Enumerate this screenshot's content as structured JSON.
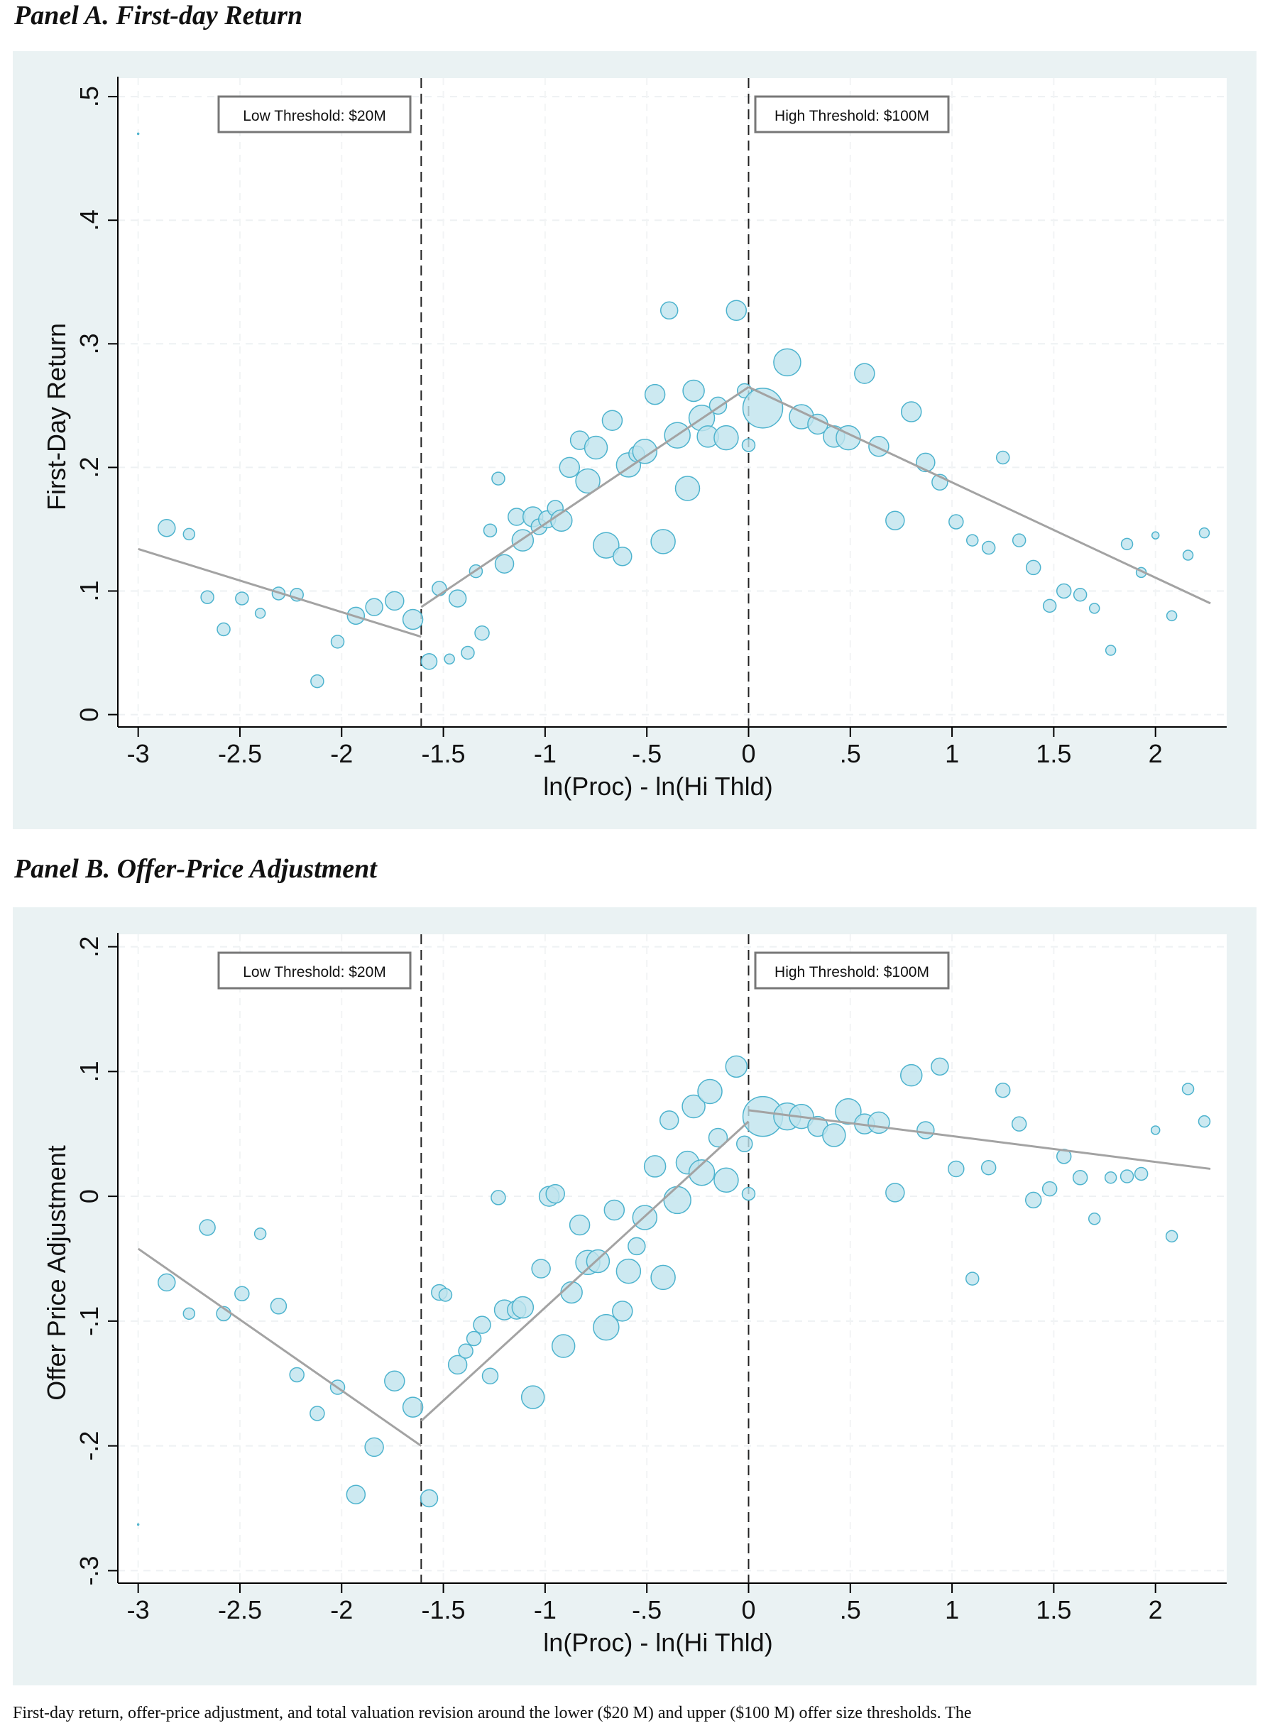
{
  "panels": [
    {
      "title": "Panel A. First-day Return"
    },
    {
      "title": "Panel B. Offer-Price Adjustment"
    }
  ],
  "caption": "First-day return, offer-price adjustment, and total valuation revision around the lower ($20 M) and upper ($100 M) offer size thresholds. The",
  "chart_data": [
    {
      "type": "scatter",
      "xlabel": "ln(Proc) - ln(Hi Thld)",
      "ylabel": "First-Day Return",
      "xlim": [
        -3.1,
        2.35
      ],
      "ylim": [
        -0.01,
        0.515
      ],
      "xticks": [
        -3,
        -2.5,
        -2,
        -1.5,
        -1,
        -0.5,
        0,
        0.5,
        1,
        1.5,
        2
      ],
      "xticklabels": [
        "-3",
        "-2.5",
        "-2",
        "-1.5",
        "-1",
        "-.5",
        "0",
        ".5",
        "1",
        "1.5",
        "2"
      ],
      "yticks": [
        0,
        0.1,
        0.2,
        0.3,
        0.4,
        0.5
      ],
      "yticklabels": [
        "0",
        ".1",
        ".2",
        ".3",
        ".4",
        ".5"
      ],
      "grid": true,
      "thresholds": [
        {
          "x": -1.609,
          "label": "Low Threshold: $20M"
        },
        {
          "x": 0,
          "label": "High Threshold: $100M"
        }
      ],
      "fit_lines": [
        {
          "x": [
            -3,
            -1.609
          ],
          "y": [
            0.134,
            0.063
          ]
        },
        {
          "x": [
            -1.609,
            0
          ],
          "y": [
            0.087,
            0.265
          ]
        },
        {
          "x": [
            0,
            2.27
          ],
          "y": [
            0.265,
            0.09
          ]
        }
      ],
      "points": [
        [
          -3.0,
          0.47,
          1
        ],
        [
          -2.86,
          0.151,
          12
        ],
        [
          -2.75,
          0.146,
          8
        ],
        [
          -2.66,
          0.095,
          9
        ],
        [
          -2.58,
          0.069,
          9
        ],
        [
          -2.49,
          0.094,
          9
        ],
        [
          -2.4,
          0.082,
          7
        ],
        [
          -2.31,
          0.098,
          9
        ],
        [
          -2.22,
          0.097,
          9
        ],
        [
          -2.12,
          0.027,
          9
        ],
        [
          -2.02,
          0.059,
          9
        ],
        [
          -1.93,
          0.08,
          12
        ],
        [
          -1.84,
          0.087,
          12
        ],
        [
          -1.74,
          0.092,
          13
        ],
        [
          -1.65,
          0.077,
          14
        ],
        [
          -1.57,
          0.043,
          11
        ],
        [
          -1.52,
          0.102,
          10
        ],
        [
          -1.47,
          0.045,
          7
        ],
        [
          -1.43,
          0.094,
          12
        ],
        [
          -1.38,
          0.05,
          9
        ],
        [
          -1.34,
          0.116,
          9
        ],
        [
          -1.31,
          0.066,
          10
        ],
        [
          -1.27,
          0.149,
          9
        ],
        [
          -1.23,
          0.191,
          9
        ],
        [
          -1.2,
          0.122,
          13
        ],
        [
          -1.14,
          0.16,
          12
        ],
        [
          -1.11,
          0.141,
          15
        ],
        [
          -1.06,
          0.16,
          14
        ],
        [
          -1.03,
          0.152,
          11
        ],
        [
          -0.99,
          0.158,
          12
        ],
        [
          -0.95,
          0.167,
          11
        ],
        [
          -0.92,
          0.157,
          15
        ],
        [
          -0.88,
          0.2,
          14
        ],
        [
          -0.83,
          0.222,
          13
        ],
        [
          -0.79,
          0.189,
          17
        ],
        [
          -0.75,
          0.216,
          16
        ],
        [
          -0.7,
          0.137,
          18
        ],
        [
          -0.67,
          0.238,
          14
        ],
        [
          -0.62,
          0.128,
          13
        ],
        [
          -0.59,
          0.202,
          17
        ],
        [
          -0.55,
          0.211,
          11
        ],
        [
          -0.51,
          0.213,
          17
        ],
        [
          -0.46,
          0.259,
          14
        ],
        [
          -0.42,
          0.14,
          17
        ],
        [
          -0.39,
          0.327,
          12
        ],
        [
          -0.35,
          0.226,
          18
        ],
        [
          -0.3,
          0.183,
          17
        ],
        [
          -0.27,
          0.262,
          15
        ],
        [
          -0.23,
          0.24,
          18
        ],
        [
          -0.2,
          0.225,
          15
        ],
        [
          -0.15,
          0.25,
          12
        ],
        [
          -0.11,
          0.224,
          17
        ],
        [
          -0.06,
          0.327,
          14
        ],
        [
          -0.02,
          0.262,
          10
        ],
        [
          0.0,
          0.218,
          9
        ],
        [
          0.07,
          0.248,
          28
        ],
        [
          0.19,
          0.285,
          19
        ],
        [
          0.26,
          0.241,
          17
        ],
        [
          0.34,
          0.235,
          14
        ],
        [
          0.42,
          0.225,
          15
        ],
        [
          0.49,
          0.224,
          17
        ],
        [
          0.57,
          0.276,
          14
        ],
        [
          0.64,
          0.217,
          14
        ],
        [
          0.72,
          0.157,
          13
        ],
        [
          0.8,
          0.245,
          14
        ],
        [
          0.87,
          0.204,
          13
        ],
        [
          0.94,
          0.188,
          11
        ],
        [
          1.02,
          0.156,
          10
        ],
        [
          1.1,
          0.141,
          8
        ],
        [
          1.18,
          0.135,
          9
        ],
        [
          1.25,
          0.208,
          9
        ],
        [
          1.33,
          0.141,
          9
        ],
        [
          1.4,
          0.119,
          10
        ],
        [
          1.48,
          0.088,
          9
        ],
        [
          1.55,
          0.1,
          10
        ],
        [
          1.63,
          0.097,
          9
        ],
        [
          1.7,
          0.086,
          7
        ],
        [
          1.78,
          0.052,
          7
        ],
        [
          1.86,
          0.138,
          8
        ],
        [
          1.93,
          0.115,
          7
        ],
        [
          2.0,
          0.145,
          5
        ],
        [
          2.08,
          0.08,
          7
        ],
        [
          2.16,
          0.129,
          7
        ],
        [
          2.24,
          0.147,
          7
        ]
      ]
    },
    {
      "type": "scatter",
      "xlabel": "ln(Proc) - ln(Hi Thld)",
      "ylabel": "Offer Price Adjustment",
      "xlim": [
        -3.1,
        2.35
      ],
      "ylim": [
        -0.31,
        0.21
      ],
      "xticks": [
        -3,
        -2.5,
        -2,
        -1.5,
        -1,
        -0.5,
        0,
        0.5,
        1,
        1.5,
        2
      ],
      "xticklabels": [
        "-3",
        "-2.5",
        "-2",
        "-1.5",
        "-1",
        "-.5",
        "0",
        ".5",
        "1",
        "1.5",
        "2"
      ],
      "yticks": [
        -0.3,
        -0.2,
        -0.1,
        0,
        0.1,
        0.2
      ],
      "yticklabels": [
        "-.3",
        "-.2",
        "-.1",
        "0",
        ".1",
        ".2"
      ],
      "grid": true,
      "thresholds": [
        {
          "x": -1.609,
          "label": "Low Threshold: $20M"
        },
        {
          "x": 0,
          "label": "High Threshold: $100M"
        }
      ],
      "fit_lines": [
        {
          "x": [
            -3,
            -1.609
          ],
          "y": [
            -0.042,
            -0.2
          ]
        },
        {
          "x": [
            -1.609,
            0
          ],
          "y": [
            -0.18,
            0.06
          ]
        },
        {
          "x": [
            0,
            2.27
          ],
          "y": [
            0.069,
            0.022
          ]
        }
      ],
      "points": [
        [
          -3.0,
          -0.263,
          1
        ],
        [
          -2.86,
          -0.069,
          12
        ],
        [
          -2.75,
          -0.094,
          8
        ],
        [
          -2.66,
          -0.025,
          11
        ],
        [
          -2.58,
          -0.094,
          10
        ],
        [
          -2.49,
          -0.078,
          10
        ],
        [
          -2.4,
          -0.03,
          8
        ],
        [
          -2.31,
          -0.088,
          11
        ],
        [
          -2.22,
          -0.143,
          10
        ],
        [
          -2.12,
          -0.174,
          10
        ],
        [
          -2.02,
          -0.153,
          10
        ],
        [
          -1.93,
          -0.239,
          13
        ],
        [
          -1.84,
          -0.201,
          13
        ],
        [
          -1.74,
          -0.148,
          14
        ],
        [
          -1.65,
          -0.169,
          14
        ],
        [
          -1.57,
          -0.242,
          12
        ],
        [
          -1.52,
          -0.077,
          11
        ],
        [
          -1.49,
          -0.079,
          9
        ],
        [
          -1.43,
          -0.135,
          13
        ],
        [
          -1.39,
          -0.124,
          10
        ],
        [
          -1.35,
          -0.114,
          10
        ],
        [
          -1.31,
          -0.103,
          12
        ],
        [
          -1.27,
          -0.144,
          11
        ],
        [
          -1.23,
          -0.001,
          10
        ],
        [
          -1.2,
          -0.091,
          14
        ],
        [
          -1.14,
          -0.091,
          13
        ],
        [
          -1.11,
          -0.089,
          15
        ],
        [
          -1.06,
          -0.161,
          16
        ],
        [
          -1.02,
          -0.058,
          13
        ],
        [
          -0.98,
          0.0,
          14
        ],
        [
          -0.95,
          0.002,
          13
        ],
        [
          -0.91,
          -0.12,
          16
        ],
        [
          -0.87,
          -0.077,
          15
        ],
        [
          -0.83,
          -0.023,
          14
        ],
        [
          -0.79,
          -0.053,
          17
        ],
        [
          -0.74,
          -0.052,
          16
        ],
        [
          -0.7,
          -0.105,
          18
        ],
        [
          -0.66,
          -0.011,
          14
        ],
        [
          -0.62,
          -0.092,
          14
        ],
        [
          -0.59,
          -0.06,
          17
        ],
        [
          -0.55,
          -0.04,
          12
        ],
        [
          -0.51,
          -0.017,
          17
        ],
        [
          -0.46,
          0.024,
          15
        ],
        [
          -0.42,
          -0.065,
          17
        ],
        [
          -0.39,
          0.061,
          13
        ],
        [
          -0.35,
          -0.003,
          19
        ],
        [
          -0.3,
          0.027,
          16
        ],
        [
          -0.27,
          0.072,
          16
        ],
        [
          -0.23,
          0.019,
          18
        ],
        [
          -0.19,
          0.084,
          17
        ],
        [
          -0.15,
          0.047,
          13
        ],
        [
          -0.11,
          0.013,
          17
        ],
        [
          -0.06,
          0.104,
          15
        ],
        [
          -0.02,
          0.042,
          11
        ],
        [
          0.0,
          0.002,
          9
        ],
        [
          0.07,
          0.064,
          28
        ],
        [
          0.19,
          0.064,
          19
        ],
        [
          0.26,
          0.064,
          17
        ],
        [
          0.34,
          0.056,
          14
        ],
        [
          0.42,
          0.049,
          16
        ],
        [
          0.49,
          0.068,
          18
        ],
        [
          0.57,
          0.058,
          14
        ],
        [
          0.64,
          0.059,
          15
        ],
        [
          0.72,
          0.003,
          13
        ],
        [
          0.8,
          0.097,
          15
        ],
        [
          0.87,
          0.053,
          12
        ],
        [
          0.94,
          0.104,
          12
        ],
        [
          1.02,
          0.022,
          11
        ],
        [
          1.1,
          -0.066,
          9
        ],
        [
          1.18,
          0.023,
          10
        ],
        [
          1.25,
          0.085,
          10
        ],
        [
          1.33,
          0.058,
          10
        ],
        [
          1.4,
          -0.003,
          11
        ],
        [
          1.48,
          0.006,
          10
        ],
        [
          1.55,
          0.032,
          10
        ],
        [
          1.63,
          0.015,
          10
        ],
        [
          1.7,
          -0.018,
          8
        ],
        [
          1.78,
          0.015,
          8
        ],
        [
          1.86,
          0.016,
          9
        ],
        [
          1.93,
          0.018,
          9
        ],
        [
          2.0,
          0.053,
          6
        ],
        [
          2.08,
          -0.032,
          8
        ],
        [
          2.16,
          0.086,
          8
        ],
        [
          2.24,
          0.06,
          8
        ]
      ]
    }
  ],
  "colors": {
    "bubble_fill": "#bfe4ee",
    "bubble_stroke": "#4db3ce",
    "fit_line": "#a3a3a3",
    "background": "#eaf2f3"
  }
}
